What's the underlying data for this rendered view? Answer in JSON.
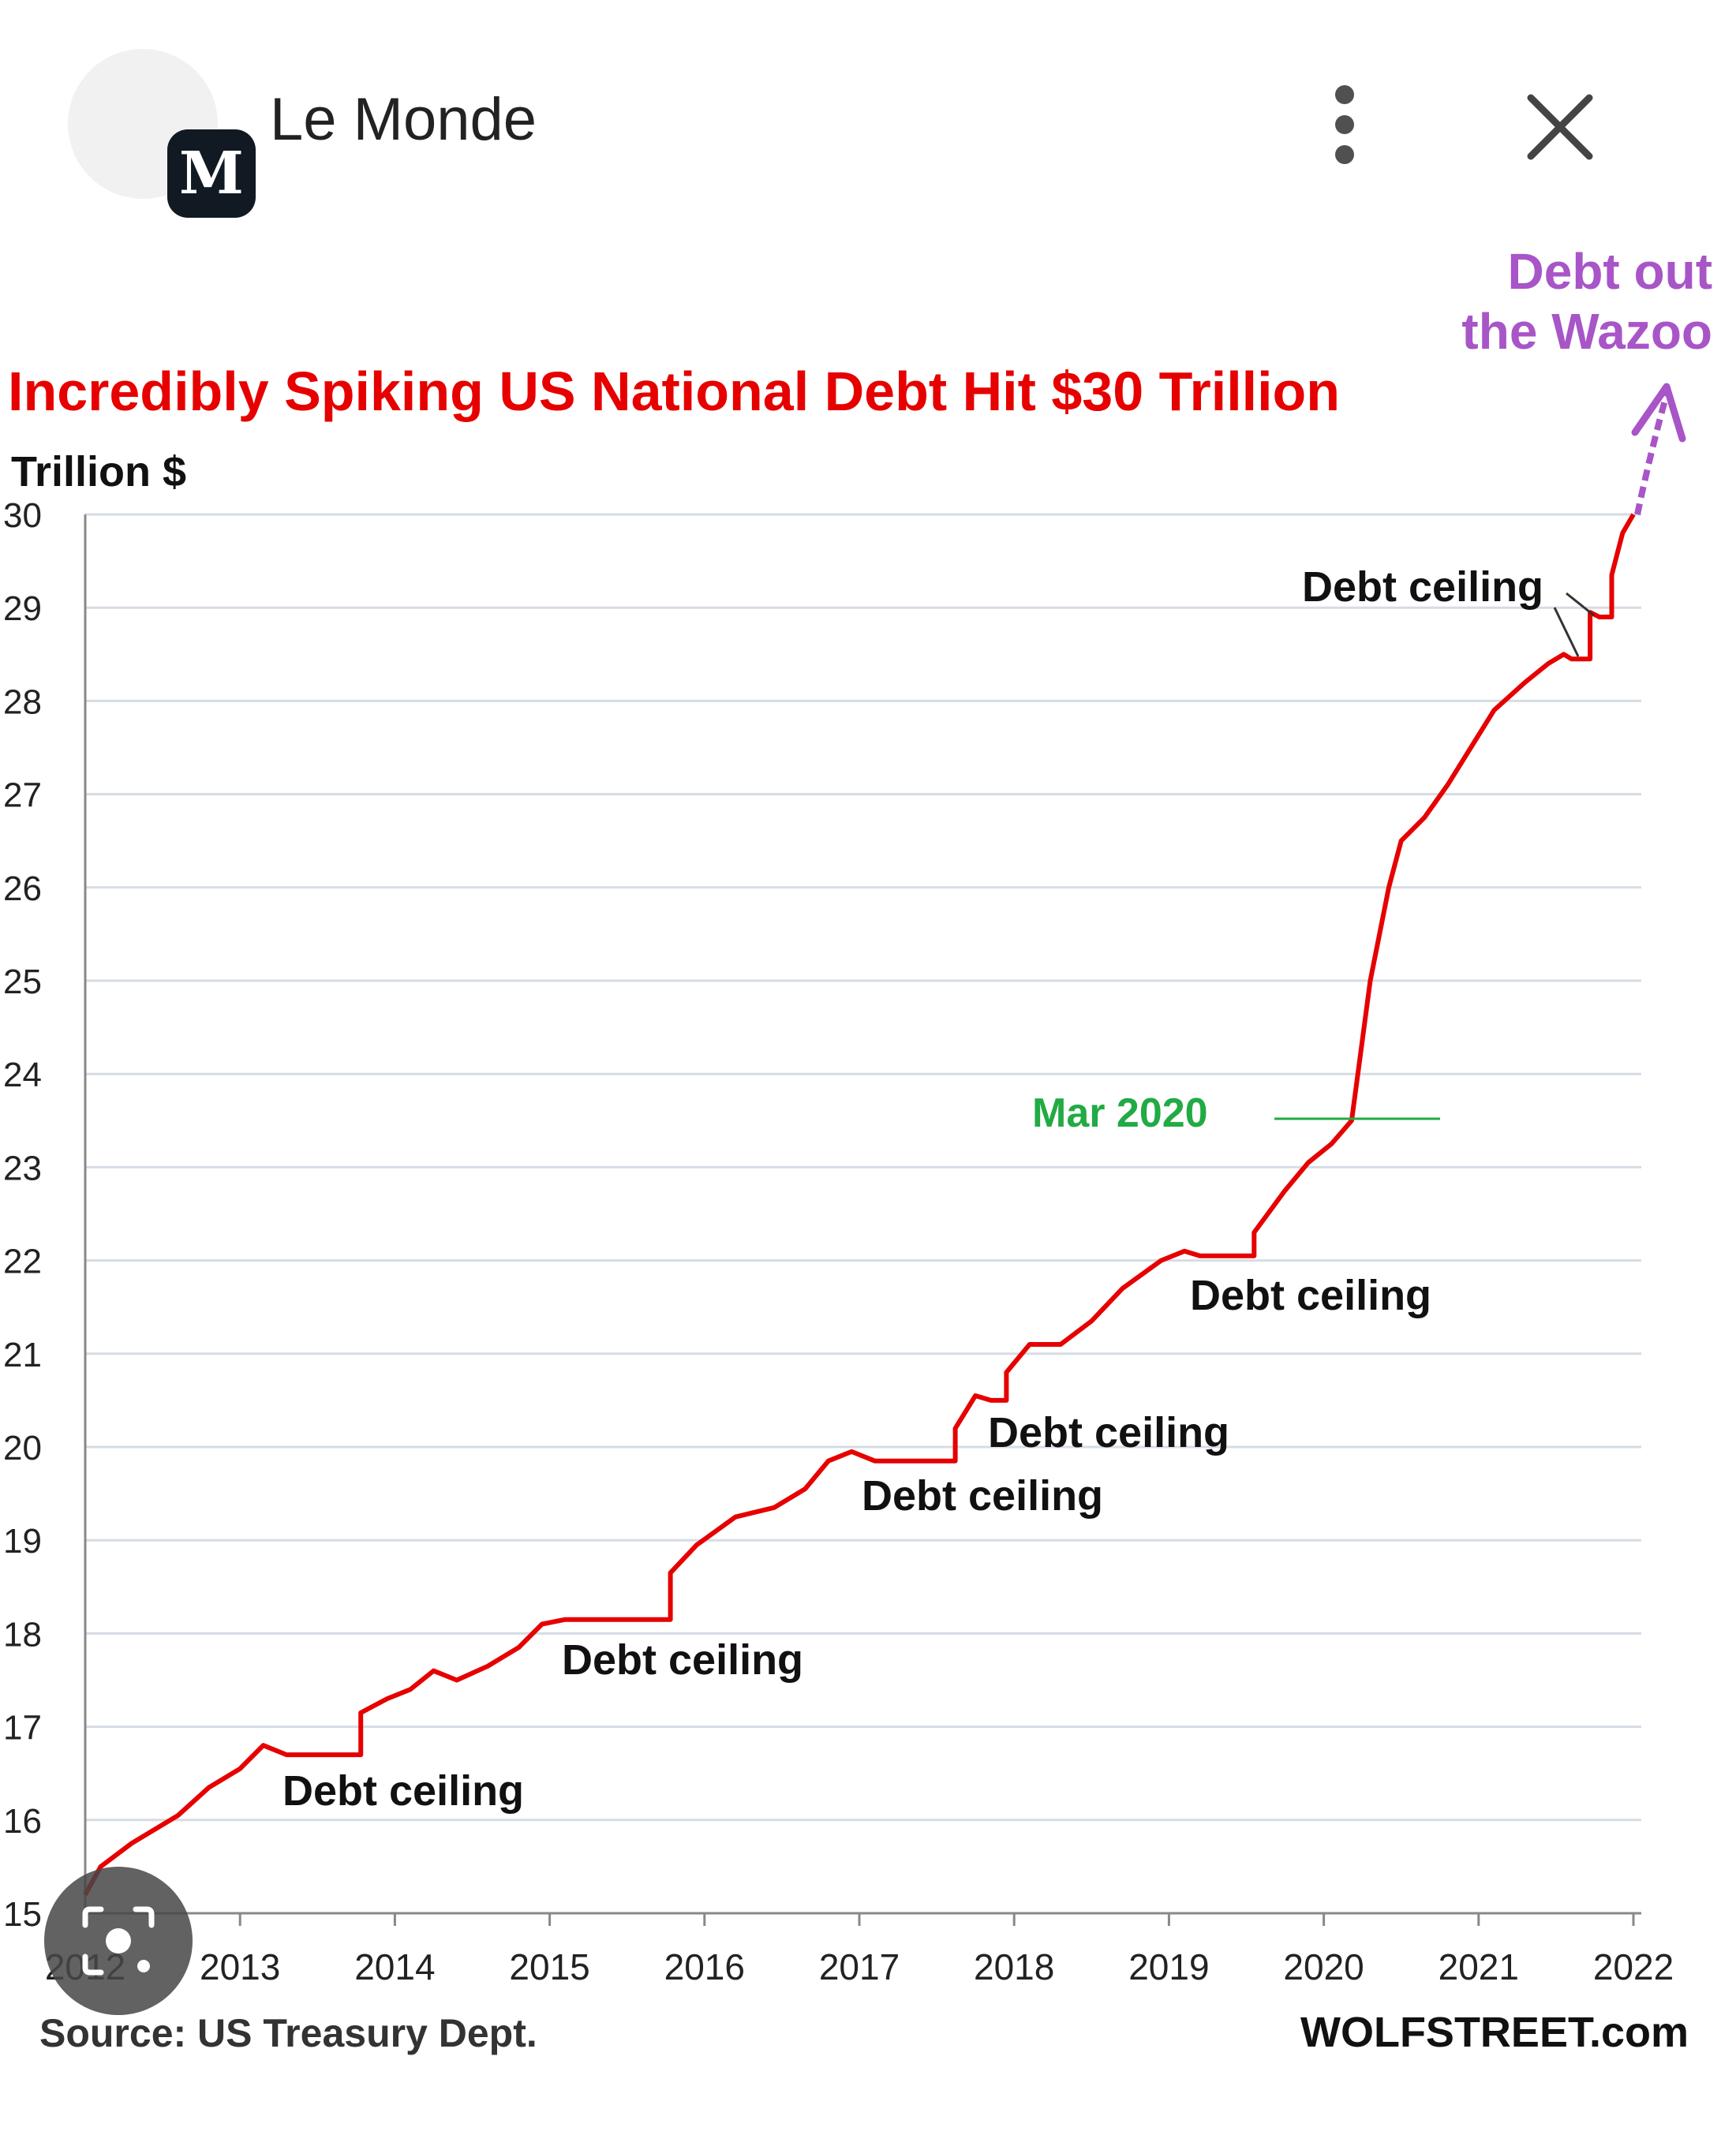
{
  "header": {
    "logo_letter": "M",
    "publication": "Le Monde",
    "more_icon": "vertical-dots-icon",
    "close_icon": "close-icon"
  },
  "chart_data": {
    "type": "line",
    "title": "Incredibly Spiking US National Debt Hit $30 Trillion",
    "ylabel": "Trillion $",
    "xlabel": "",
    "ylim": [
      15,
      30
    ],
    "xlim": [
      2012,
      2022
    ],
    "yticks": [
      "15",
      "16",
      "17",
      "18",
      "19",
      "20",
      "21",
      "22",
      "23",
      "24",
      "25",
      "26",
      "27",
      "28",
      "29",
      "30"
    ],
    "xticks": [
      "2012",
      "2013",
      "2014",
      "2015",
      "2016",
      "2017",
      "2018",
      "2019",
      "2020",
      "2021",
      "2022"
    ],
    "grid": true,
    "colors": {
      "series": "#e60000",
      "title": "#e60000",
      "mar2020": "#22aa44",
      "wazoo": "#a855c8"
    },
    "series": [
      {
        "points": [
          [
            2012.0,
            15.2
          ],
          [
            2012.1,
            15.5
          ],
          [
            2012.3,
            15.75
          ],
          [
            2012.6,
            16.05
          ],
          [
            2012.8,
            16.35
          ],
          [
            2013.0,
            16.55
          ],
          [
            2013.15,
            16.8
          ],
          [
            2013.3,
            16.7
          ],
          [
            2013.45,
            16.7
          ],
          [
            2013.6,
            16.7
          ],
          [
            2013.78,
            16.7
          ],
          [
            2013.78,
            17.15
          ],
          [
            2013.95,
            17.3
          ],
          [
            2014.1,
            17.4
          ],
          [
            2014.25,
            17.6
          ],
          [
            2014.4,
            17.5
          ],
          [
            2014.6,
            17.65
          ],
          [
            2014.8,
            17.85
          ],
          [
            2014.95,
            18.1
          ],
          [
            2015.1,
            18.15
          ],
          [
            2015.4,
            18.15
          ],
          [
            2015.6,
            18.15
          ],
          [
            2015.78,
            18.15
          ],
          [
            2015.78,
            18.65
          ],
          [
            2015.95,
            18.95
          ],
          [
            2016.2,
            19.25
          ],
          [
            2016.45,
            19.35
          ],
          [
            2016.65,
            19.55
          ],
          [
            2016.8,
            19.85
          ],
          [
            2016.95,
            19.95
          ],
          [
            2017.1,
            19.85
          ],
          [
            2017.3,
            19.85
          ],
          [
            2017.5,
            19.85
          ],
          [
            2017.62,
            19.85
          ],
          [
            2017.62,
            20.2
          ],
          [
            2017.75,
            20.55
          ],
          [
            2017.85,
            20.5
          ],
          [
            2017.95,
            20.5
          ],
          [
            2017.95,
            20.8
          ],
          [
            2018.1,
            21.1
          ],
          [
            2018.3,
            21.1
          ],
          [
            2018.5,
            21.35
          ],
          [
            2018.7,
            21.7
          ],
          [
            2018.95,
            22.0
          ],
          [
            2019.1,
            22.1
          ],
          [
            2019.2,
            22.05
          ],
          [
            2019.4,
            22.05
          ],
          [
            2019.55,
            22.05
          ],
          [
            2019.55,
            22.3
          ],
          [
            2019.75,
            22.75
          ],
          [
            2019.9,
            23.05
          ],
          [
            2020.05,
            23.25
          ],
          [
            2020.18,
            23.5
          ],
          [
            2020.22,
            24.0
          ],
          [
            2020.3,
            25.0
          ],
          [
            2020.42,
            26.0
          ],
          [
            2020.5,
            26.5
          ],
          [
            2020.65,
            26.75
          ],
          [
            2020.8,
            27.1
          ],
          [
            2020.95,
            27.5
          ],
          [
            2021.1,
            27.9
          ],
          [
            2021.3,
            28.2
          ],
          [
            2021.45,
            28.4
          ],
          [
            2021.55,
            28.5
          ],
          [
            2021.6,
            28.45
          ],
          [
            2021.72,
            28.45
          ],
          [
            2021.72,
            28.95
          ],
          [
            2021.78,
            28.9
          ],
          [
            2021.86,
            28.9
          ],
          [
            2021.86,
            29.35
          ],
          [
            2021.93,
            29.8
          ],
          [
            2022.0,
            30.0
          ]
        ]
      }
    ],
    "annotations": {
      "debt_ceiling": "Debt ceiling",
      "mar2020": "Mar 2020",
      "wazoo_line1": "Debt out",
      "wazoo_line2": "the Wazoo"
    },
    "source": "Source: US Treasury Dept.",
    "credit": "WOLFSTREET.com"
  }
}
